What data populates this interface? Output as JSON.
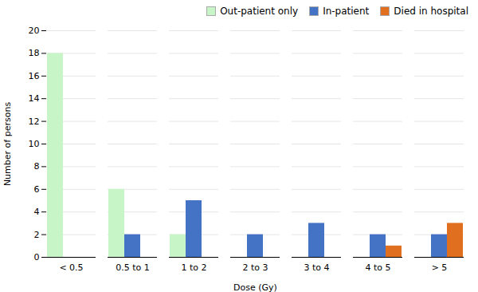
{
  "chart_data": {
    "type": "bar",
    "categories": [
      "< 0.5",
      "0.5 to 1",
      "1 to 2",
      "2 to 3",
      "3 to 4",
      "4 to 5",
      "> 5"
    ],
    "series": [
      {
        "name": "Out-patient only",
        "color": "#c8f5c8",
        "values": [
          18,
          6,
          2,
          0,
          0,
          0,
          0
        ]
      },
      {
        "name": "In-patient",
        "color": "#4472c4",
        "values": [
          0,
          2,
          5,
          2,
          3,
          2,
          2
        ]
      },
      {
        "name": "Died in hospital",
        "color": "#e07020",
        "values": [
          0,
          0,
          0,
          0,
          0,
          1,
          3
        ]
      }
    ],
    "xlabel": "Dose (Gy)",
    "ylabel": "Number of persons",
    "ylim": [
      0,
      20
    ],
    "yticks": [
      0,
      2,
      4,
      6,
      8,
      10,
      12,
      14,
      16,
      18,
      20
    ],
    "grid": true,
    "legend": "right"
  }
}
